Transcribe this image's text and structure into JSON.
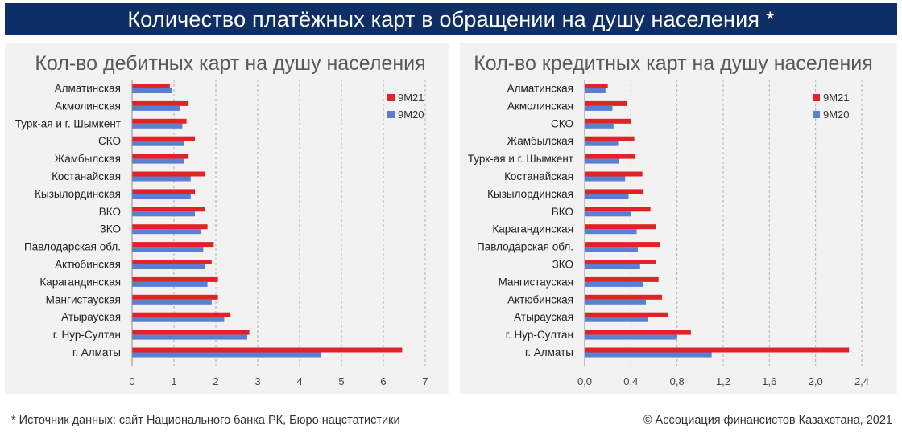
{
  "header": {
    "title": "Количество платёжных карт в обращении на душу населения *"
  },
  "footer": {
    "source": "* Источник данных: сайт Национального банка РК, Бюро нацстатистики",
    "copyright": "© Ассоциация финансистов Казахстана, 2021"
  },
  "colors": {
    "banner": "#0d2f66",
    "series_9M21": "#e32227",
    "series_9M20": "#5a7fd0"
  },
  "chart_data": [
    {
      "type": "bar",
      "orientation": "horizontal",
      "title": "Кол-во дебитных карт на душу населения",
      "categories": [
        "Алматинская",
        "Акмолинская",
        "Турк-ая и г. Шымкент",
        "СКО",
        "Жамбылская",
        "Костанайская",
        "Кызылординская",
        "ВКО",
        "ЗКО",
        "Павлодарская обл.",
        "Актюбинская",
        "Карагандинская",
        "Мангистауская",
        "Атырауская",
        "г. Нур-Султан",
        "г. Алматы"
      ],
      "series": [
        {
          "name": "9M21",
          "values": [
            0.9,
            1.35,
            1.3,
            1.5,
            1.35,
            1.75,
            1.5,
            1.75,
            1.8,
            1.95,
            1.9,
            2.05,
            2.05,
            2.35,
            2.8,
            6.45
          ]
        },
        {
          "name": "9M20",
          "values": [
            0.95,
            1.15,
            1.2,
            1.25,
            1.25,
            1.4,
            1.4,
            1.5,
            1.65,
            1.7,
            1.75,
            1.8,
            1.9,
            2.2,
            2.75,
            4.5
          ]
        }
      ],
      "xlim": [
        0,
        7
      ],
      "xticks": [
        0,
        1,
        2,
        3,
        4,
        5,
        6,
        7
      ],
      "tick_labels": [
        "0",
        "1",
        "2",
        "3",
        "4",
        "5",
        "6",
        "7"
      ],
      "legend_position": "top-right"
    },
    {
      "type": "bar",
      "orientation": "horizontal",
      "title": "Кол-во кредитных карт на душу населения",
      "categories": [
        "Алматинская",
        "Акмолинская",
        "СКО",
        "Жамбылская",
        "Турк-ая и г. Шымкент",
        "Костанайская",
        "Кызылординская",
        "ВКО",
        "Карагандинская",
        "Павлодарская обл.",
        "ЗКО",
        "Мангистауская",
        "Актюбинская",
        "Атырауская",
        "г. Нур-Султан",
        "г. Алматы"
      ],
      "series": [
        {
          "name": "9M21",
          "values": [
            0.2,
            0.37,
            0.4,
            0.43,
            0.44,
            0.5,
            0.51,
            0.57,
            0.62,
            0.65,
            0.62,
            0.64,
            0.67,
            0.72,
            0.92,
            2.29
          ]
        },
        {
          "name": "9M20",
          "values": [
            0.18,
            0.24,
            0.25,
            0.29,
            0.3,
            0.35,
            0.38,
            0.4,
            0.45,
            0.46,
            0.48,
            0.51,
            0.53,
            0.55,
            0.8,
            1.1
          ]
        }
      ],
      "xlim": [
        0,
        2.4
      ],
      "xticks": [
        0,
        0.4,
        0.8,
        1.2,
        1.6,
        2.0,
        2.4
      ],
      "tick_labels": [
        "0,0",
        "0,4",
        "0,8",
        "1,2",
        "1,6",
        "2,0",
        "2,4"
      ],
      "legend_position": "top-right"
    }
  ]
}
